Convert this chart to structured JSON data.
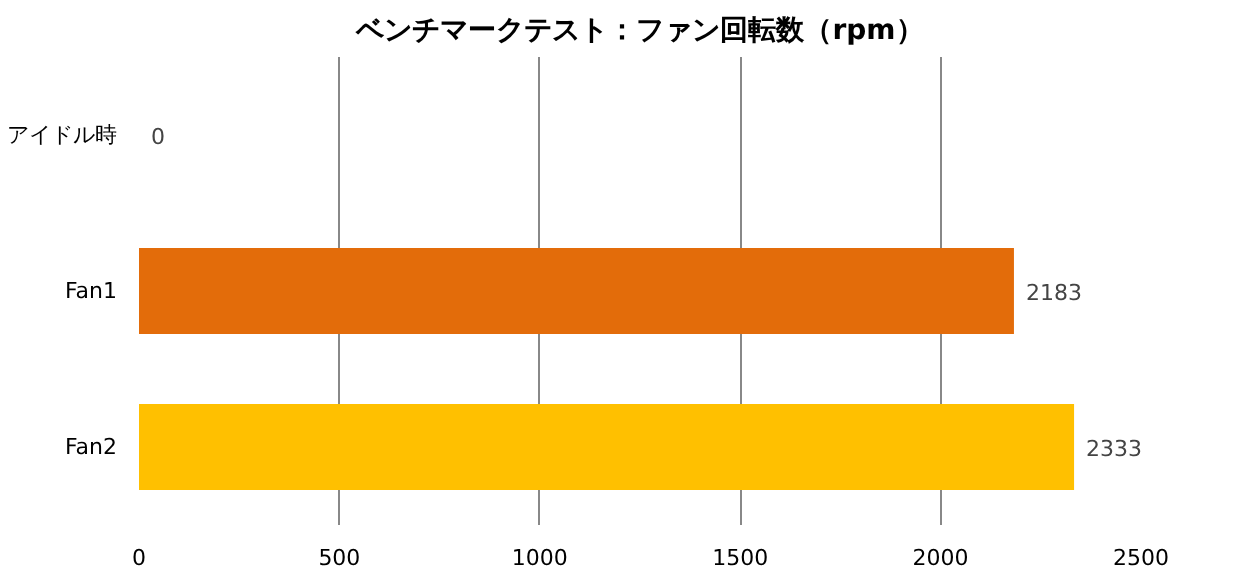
{
  "chart_data": {
    "type": "bar",
    "orientation": "horizontal",
    "title": "ベンチマークテスト：ファン回転数（rpm）",
    "categories": [
      "アイドル時",
      "Fan1",
      "Fan2"
    ],
    "values": [
      0,
      2183,
      2333
    ],
    "colors": [
      "#4f81bd",
      "#e36c0a",
      "#ffc000"
    ],
    "xlim": [
      0,
      2500
    ],
    "xticks": [
      0,
      500,
      1000,
      1500,
      2000,
      2500
    ],
    "grid": "x",
    "data_labels": true
  }
}
